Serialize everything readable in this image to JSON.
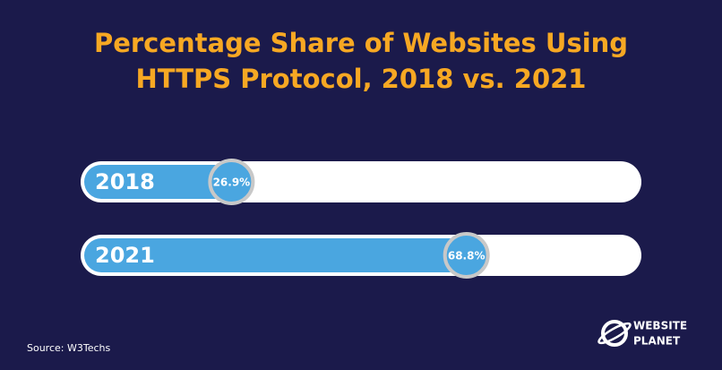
{
  "chart_data": {
    "type": "progress",
    "title": "Percentage Share of Websites Using HTTPS Protocol, 2018 vs. 2021",
    "categories": [
      "2018",
      "2021"
    ],
    "values": [
      26.9,
      68.8
    ],
    "value_labels": [
      "26.9%",
      "68.8%"
    ],
    "xlim": [
      0,
      100
    ],
    "color": "#4aa6e0",
    "source": "Source: W3Techs"
  },
  "brand": [
    "WEBSITE",
    "PLANET"
  ]
}
